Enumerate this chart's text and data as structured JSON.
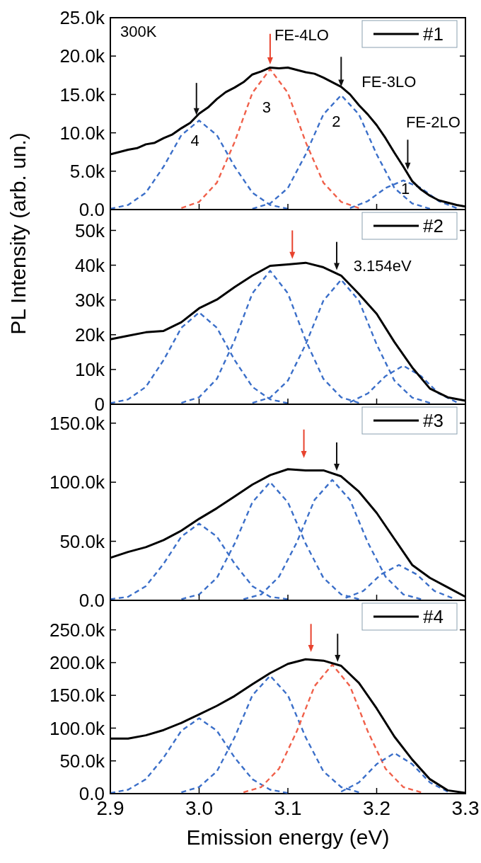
{
  "chart_data": [
    {
      "type": "line",
      "ylabel": "PL Intensity (arb. un.)",
      "xlim": [
        2.9,
        3.3
      ],
      "xticks": [
        2.9,
        3.0,
        3.1,
        3.2,
        3.3
      ],
      "ylim": [
        0,
        25000
      ],
      "yticks": [
        {
          "value": 0,
          "label": "0.0"
        },
        {
          "value": 5000,
          "label": "5.0k"
        },
        {
          "value": 10000,
          "label": "10.0k"
        },
        {
          "value": 15000,
          "label": "15.0k"
        },
        {
          "value": 20000,
          "label": "20.0k"
        },
        {
          "value": 25000,
          "label": "25.0k"
        }
      ],
      "tick_labels": "y",
      "legend": "top right",
      "annotations": [
        "300K",
        {
          "text": "FE-4LO",
          "x": 3.08,
          "y": 18500
        },
        {
          "text": "FE-3LO",
          "x": 3.16,
          "y": 16000
        },
        {
          "text": "FE-2LO",
          "x": 3.235,
          "y": 4800
        },
        {
          "text": "4",
          "x": 3.0,
          "y": 11600
        },
        {
          "text": "3",
          "x": 3.08,
          "y": 18300
        },
        {
          "text": "2",
          "x": 3.16,
          "y": 14900
        },
        {
          "text": "1",
          "x": 3.23,
          "y": 3800
        }
      ],
      "series": [
        {
          "type": "line",
          "line_style": "dashed",
          "color": "#3b6fc9",
          "x": [
            2.9,
            2.92,
            2.94,
            2.96,
            2.98,
            3.0,
            3.02,
            3.04,
            3.06,
            3.08,
            3.1
          ],
          "values": [
            100,
            600,
            2200,
            5600,
            9700,
            11600,
            9700,
            5600,
            2200,
            600,
            100
          ]
        },
        {
          "type": "line",
          "line_style": "dashed",
          "color": "#f0604a",
          "x": [
            2.98,
            3.0,
            3.02,
            3.04,
            3.06,
            3.08,
            3.1,
            3.12,
            3.14,
            3.16,
            3.18
          ],
          "values": [
            200,
            1000,
            3500,
            8800,
            15200,
            18300,
            15200,
            8800,
            3500,
            1000,
            200
          ]
        },
        {
          "type": "line",
          "line_style": "dashed",
          "color": "#3b6fc9",
          "x": [
            3.06,
            3.08,
            3.1,
            3.12,
            3.14,
            3.16,
            3.18,
            3.2,
            3.22,
            3.24,
            3.26
          ],
          "values": [
            100,
            800,
            2800,
            7200,
            12400,
            14900,
            12400,
            7200,
            2800,
            800,
            100
          ]
        },
        {
          "type": "line",
          "line_style": "dashed",
          "color": "#3b6fc9",
          "x": [
            3.17,
            3.19,
            3.21,
            3.23,
            3.25,
            3.27,
            3.29
          ],
          "values": [
            200,
            1100,
            2800,
            3800,
            2800,
            1100,
            200
          ]
        },
        {
          "type": "line",
          "line_style": "solid",
          "name": "#1",
          "color": "#000000",
          "x": [
            2.9,
            2.91,
            2.92,
            2.93,
            2.94,
            2.95,
            2.96,
            2.97,
            2.98,
            2.99,
            3.0,
            3.01,
            3.02,
            3.03,
            3.04,
            3.05,
            3.06,
            3.07,
            3.08,
            3.09,
            3.1,
            3.11,
            3.12,
            3.13,
            3.14,
            3.15,
            3.16,
            3.17,
            3.18,
            3.19,
            3.2,
            3.21,
            3.22,
            3.23,
            3.24,
            3.25,
            3.26,
            3.27,
            3.28,
            3.29,
            3.3
          ],
          "values": [
            7200,
            7500,
            7800,
            8000,
            8500,
            8700,
            9300,
            9800,
            10600,
            11300,
            12500,
            13300,
            14400,
            15300,
            15900,
            16600,
            17600,
            18000,
            18500,
            18400,
            18500,
            18200,
            17900,
            17700,
            17200,
            16600,
            16000,
            15000,
            13600,
            12400,
            11000,
            9300,
            7400,
            5600,
            3700,
            2600,
            1800,
            1200,
            900,
            600,
            400
          ]
        }
      ]
    },
    {
      "type": "line",
      "xlim": [
        2.9,
        3.3
      ],
      "xticks": [
        2.9,
        3.0,
        3.1,
        3.2,
        3.3
      ],
      "ylim": [
        0,
        56000
      ],
      "yticks": [
        {
          "value": 0,
          "label": "0"
        },
        {
          "value": 10000,
          "label": "10k"
        },
        {
          "value": 20000,
          "label": "20k"
        },
        {
          "value": 30000,
          "label": "30k"
        },
        {
          "value": 40000,
          "label": "40k"
        },
        {
          "value": 50000,
          "label": "50k"
        }
      ],
      "tick_labels": "y",
      "legend": "top right",
      "annotations": [
        {
          "text": "3.154eV",
          "x": 3.154,
          "y": 38600
        }
      ],
      "series": [
        {
          "type": "line",
          "line_style": "dashed",
          "color": "#3b6fc9",
          "x": [
            2.9,
            2.92,
            2.94,
            2.96,
            2.98,
            3.0,
            3.02,
            3.04,
            3.06,
            3.08,
            3.1
          ],
          "values": [
            300,
            1400,
            5000,
            12700,
            22000,
            26400,
            22000,
            12700,
            5000,
            1400,
            300
          ]
        },
        {
          "type": "line",
          "line_style": "dashed",
          "color": "#3b6fc9",
          "x": [
            2.98,
            3.0,
            3.02,
            3.04,
            3.06,
            3.08,
            3.1,
            3.12,
            3.14,
            3.16,
            3.18
          ],
          "values": [
            400,
            2000,
            7300,
            18400,
            31900,
            38400,
            31900,
            18400,
            7300,
            2000,
            400
          ]
        },
        {
          "type": "line",
          "line_style": "dashed",
          "color": "#3b6fc9",
          "x": [
            3.06,
            3.08,
            3.1,
            3.12,
            3.14,
            3.16,
            3.18,
            3.2,
            3.22,
            3.24,
            3.26
          ],
          "values": [
            400,
            1900,
            6800,
            17200,
            29800,
            35800,
            29800,
            17200,
            6800,
            1900,
            400
          ]
        },
        {
          "type": "line",
          "line_style": "dashed",
          "color": "#3b6fc9",
          "x": [
            3.17,
            3.19,
            3.21,
            3.23,
            3.25,
            3.27,
            3.29
          ],
          "values": [
            600,
            3100,
            8100,
            11100,
            8100,
            3100,
            600
          ]
        },
        {
          "type": "line",
          "line_style": "solid",
          "name": "#2",
          "color": "#000000",
          "x": [
            2.9,
            2.92,
            2.94,
            2.96,
            2.98,
            3.0,
            3.02,
            3.04,
            3.06,
            3.08,
            3.1,
            3.12,
            3.14,
            3.16,
            3.18,
            3.2,
            3.22,
            3.24,
            3.26,
            3.28,
            3.3
          ],
          "values": [
            18700,
            19700,
            20700,
            21100,
            23600,
            27600,
            30100,
            33700,
            37000,
            39800,
            40200,
            40700,
            39400,
            37000,
            31700,
            26000,
            17900,
            10600,
            4500,
            2000,
            1000
          ]
        }
      ]
    },
    {
      "type": "line",
      "xlim": [
        2.9,
        3.3
      ],
      "xticks": [
        2.9,
        3.0,
        3.1,
        3.2,
        3.3
      ],
      "ylim": [
        0,
        166000
      ],
      "yticks": [
        {
          "value": 0,
          "label": "0.0"
        },
        {
          "value": 50000,
          "label": "50.0k"
        },
        {
          "value": 100000,
          "label": "100.0k"
        },
        {
          "value": 150000,
          "label": "150.0k"
        }
      ],
      "tick_labels": "y",
      "legend": "top right",
      "series": [
        {
          "type": "line",
          "line_style": "dashed",
          "color": "#3b6fc9",
          "x": [
            2.9,
            2.92,
            2.94,
            2.96,
            2.98,
            3.0,
            3.02,
            3.04,
            3.06,
            3.08,
            3.1
          ],
          "values": [
            1000,
            3000,
            12000,
            31000,
            54000,
            65000,
            54000,
            31000,
            12000,
            3000,
            1000
          ]
        },
        {
          "type": "line",
          "line_style": "dashed",
          "color": "#3b6fc9",
          "x": [
            2.98,
            3.0,
            3.02,
            3.04,
            3.06,
            3.08,
            3.1,
            3.12,
            3.14,
            3.16,
            3.18
          ],
          "values": [
            1000,
            5000,
            19000,
            48000,
            83000,
            100000,
            83000,
            48000,
            19000,
            5000,
            1000
          ]
        },
        {
          "type": "line",
          "line_style": "dashed",
          "color": "#3b6fc9",
          "x": [
            3.05,
            3.07,
            3.09,
            3.11,
            3.13,
            3.15,
            3.17,
            3.19,
            3.21,
            3.23,
            3.25
          ],
          "values": [
            1000,
            5000,
            20000,
            49000,
            85000,
            102000,
            85000,
            49000,
            20000,
            5000,
            1000
          ]
        },
        {
          "type": "line",
          "line_style": "dashed",
          "color": "#3b6fc9",
          "x": [
            3.165,
            3.185,
            3.205,
            3.225,
            3.245,
            3.265,
            3.285
          ],
          "values": [
            2000,
            8000,
            22000,
            30000,
            22000,
            8000,
            2000
          ]
        },
        {
          "type": "line",
          "line_style": "solid",
          "name": "#3",
          "color": "#000000",
          "x": [
            2.9,
            2.92,
            2.94,
            2.96,
            2.98,
            3.0,
            3.02,
            3.04,
            3.06,
            3.08,
            3.1,
            3.12,
            3.14,
            3.16,
            3.18,
            3.2,
            3.22,
            3.24,
            3.26,
            3.28,
            3.3
          ],
          "values": [
            36000,
            41000,
            45000,
            51000,
            59000,
            69000,
            78000,
            88000,
            98000,
            106000,
            111000,
            110000,
            110000,
            105000,
            92000,
            74000,
            52000,
            30000,
            19000,
            11000,
            3000
          ]
        }
      ]
    },
    {
      "type": "line",
      "xlabel": "Emission energy (eV)",
      "xlim": [
        2.9,
        3.3
      ],
      "xticks": [
        {
          "value": 2.9,
          "label": "2.9"
        },
        {
          "value": 3.0,
          "label": "3.0"
        },
        {
          "value": 3.1,
          "label": "3.1"
        },
        {
          "value": 3.2,
          "label": "3.2"
        },
        {
          "value": 3.3,
          "label": "3.3"
        }
      ],
      "ylim": [
        0,
        295000
      ],
      "yticks": [
        {
          "value": 0,
          "label": "0.0"
        },
        {
          "value": 50000,
          "label": "50.0k"
        },
        {
          "value": 100000,
          "label": "100.0k"
        },
        {
          "value": 150000,
          "label": "150.0k"
        },
        {
          "value": 200000,
          "label": "200.0k"
        },
        {
          "value": 250000,
          "label": "250.0k"
        }
      ],
      "legend": "top right",
      "series": [
        {
          "type": "line",
          "line_style": "dashed",
          "color": "#3b6fc9",
          "x": [
            2.9,
            2.92,
            2.94,
            2.96,
            2.98,
            3.0,
            3.02,
            3.04,
            3.06,
            3.08,
            3.1
          ],
          "values": [
            1000,
            6000,
            22000,
            55000,
            96000,
            115000,
            96000,
            55000,
            22000,
            6000,
            1000
          ]
        },
        {
          "type": "line",
          "line_style": "dashed",
          "color": "#3b6fc9",
          "x": [
            2.98,
            3.0,
            3.02,
            3.04,
            3.06,
            3.08,
            3.1,
            3.12,
            3.14,
            3.16,
            3.18
          ],
          "values": [
            2000,
            10000,
            34000,
            86000,
            150000,
            180000,
            150000,
            86000,
            34000,
            10000,
            2000
          ]
        },
        {
          "type": "line",
          "line_style": "dashed",
          "color": "#f0604a",
          "x": [
            3.05,
            3.07,
            3.09,
            3.11,
            3.13,
            3.15,
            3.17,
            3.19,
            3.21,
            3.23,
            3.25
          ],
          "values": [
            2000,
            10000,
            38000,
            95000,
            164000,
            197000,
            164000,
            95000,
            38000,
            10000,
            2000
          ]
        },
        {
          "type": "line",
          "line_style": "dashed",
          "color": "#3b6fc9",
          "x": [
            3.16,
            3.18,
            3.2,
            3.22,
            3.24,
            3.26,
            3.28
          ],
          "values": [
            3000,
            17000,
            45000,
            62000,
            45000,
            17000,
            3000
          ]
        },
        {
          "type": "line",
          "line_style": "solid",
          "name": "#4",
          "color": "#000000",
          "x": [
            2.9,
            2.92,
            2.94,
            2.96,
            2.98,
            3.0,
            3.02,
            3.04,
            3.06,
            3.08,
            3.1,
            3.12,
            3.14,
            3.16,
            3.18,
            3.2,
            3.22,
            3.24,
            3.26,
            3.28,
            3.3
          ],
          "values": [
            84000,
            84000,
            89000,
            97000,
            108000,
            121000,
            134000,
            149000,
            167000,
            184000,
            198000,
            205000,
            203000,
            195000,
            169000,
            130000,
            87000,
            52000,
            22000,
            5000,
            1000
          ]
        }
      ]
    }
  ]
}
